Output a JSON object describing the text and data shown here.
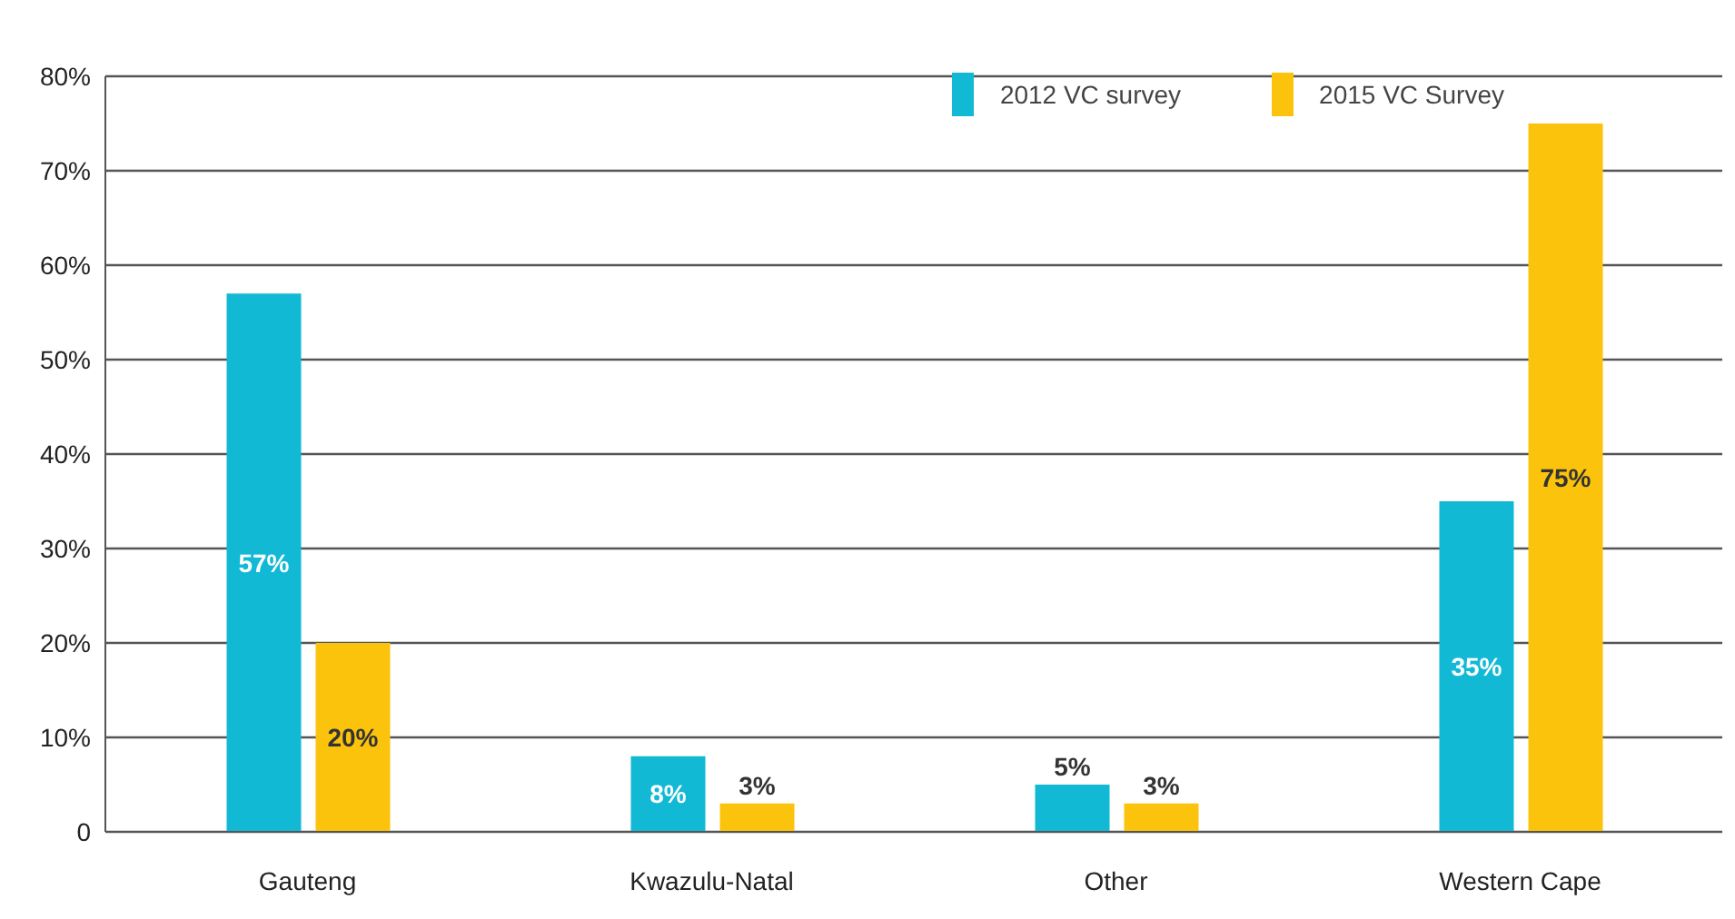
{
  "chart_data": {
    "type": "bar",
    "categories": [
      "Gauteng",
      "Kwazulu-Natal",
      "Other",
      "Western Cape"
    ],
    "series": [
      {
        "name": "2012 VC survey",
        "color": "#12b9d5",
        "values": [
          57,
          8,
          5,
          35
        ],
        "value_labels": [
          "57%",
          "8%",
          "5%",
          "35%"
        ]
      },
      {
        "name": "2015 VC Survey",
        "color": "#fcc30c",
        "values": [
          20,
          3,
          3,
          75
        ],
        "value_labels": [
          "20%",
          "3%",
          "3%",
          "75%"
        ]
      }
    ],
    "ylim": [
      0,
      80
    ],
    "yticks": [
      0,
      {
        "value": 10,
        "label": "10%"
      },
      {
        "value": 20,
        "label": "20%"
      },
      {
        "value": 30,
        "label": "30%"
      },
      {
        "value": 40,
        "label": "40%"
      },
      {
        "value": 50,
        "label": "50%"
      },
      {
        "value": 60,
        "label": "60%"
      },
      {
        "value": 70,
        "label": "70%"
      },
      {
        "value": 80,
        "label": "80%"
      }
    ],
    "grid": "y",
    "legend": "top right"
  }
}
